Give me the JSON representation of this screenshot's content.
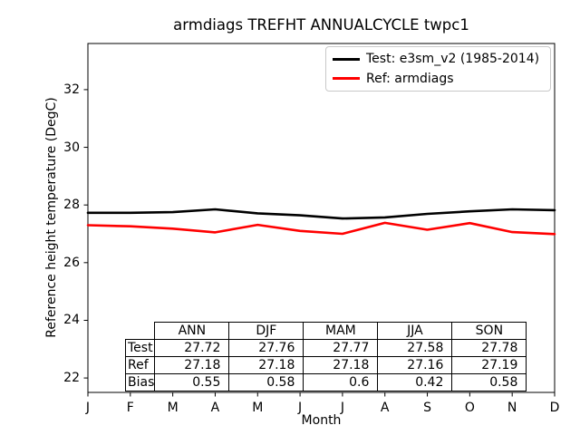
{
  "chart_data": {
    "type": "line",
    "title": "armdiags TREFHT ANNUALCYCLE twpc1",
    "xlabel": "Month",
    "ylabel": "Reference height temperature (DegC)",
    "x_ticklabels": [
      "J",
      "F",
      "M",
      "A",
      "M",
      "J",
      "J",
      "A",
      "S",
      "O",
      "N",
      "D"
    ],
    "y_ticks": [
      22,
      24,
      26,
      28,
      30,
      32
    ],
    "ylim": [
      21.5,
      33.6
    ],
    "grid": false,
    "legend_position": "upper right",
    "axis_color": "#000000",
    "series": [
      {
        "name": "Test: e3sm_v2 (1985-2014)",
        "color": "#000000",
        "values": [
          27.73,
          27.73,
          27.75,
          27.85,
          27.71,
          27.64,
          27.53,
          27.57,
          27.69,
          27.78,
          27.85,
          27.82
        ]
      },
      {
        "name": "Ref: armdiags",
        "color": "#ff0000",
        "values": [
          27.3,
          27.26,
          27.18,
          27.05,
          27.31,
          27.1,
          27.0,
          27.38,
          27.14,
          27.37,
          27.06,
          26.99
        ]
      }
    ]
  },
  "stats_table": {
    "columns": [
      "ANN",
      "DJF",
      "MAM",
      "JJA",
      "SON"
    ],
    "rows": [
      {
        "label": "Test",
        "values": [
          "27.72",
          "27.76",
          "27.77",
          "27.58",
          "27.78"
        ]
      },
      {
        "label": "Ref",
        "values": [
          "27.18",
          "27.18",
          "27.18",
          "27.16",
          "27.19"
        ]
      },
      {
        "label": "Bias",
        "values": [
          "0.55",
          "0.58",
          "0.6",
          "0.42",
          "0.58"
        ]
      }
    ]
  }
}
